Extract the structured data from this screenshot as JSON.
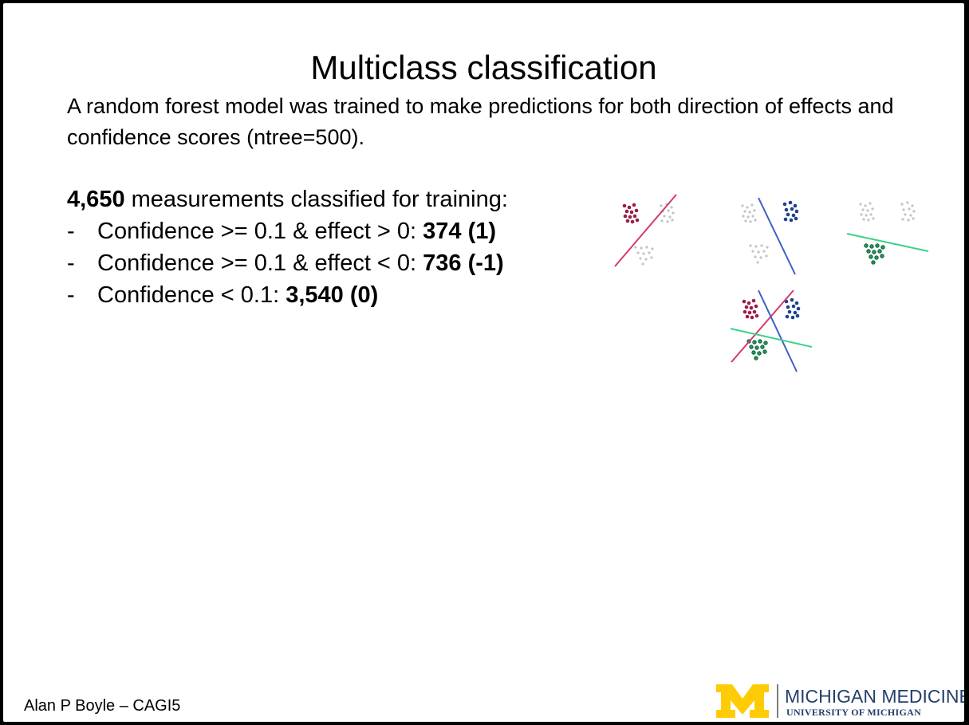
{
  "slide": {
    "title": "Multiclass classification",
    "intro": "A random forest model was trained to make predictions for both direction of effects and confidence scores (ntree=500).",
    "list": {
      "heading_bold": "4,650",
      "heading_rest": " measurements classified for training:",
      "items": [
        {
          "dash": "-",
          "text": "Confidence >= 0.1 & effect > 0: ",
          "bold": "374 (1)"
        },
        {
          "dash": "-",
          "text": "Confidence >= 0.1 & effect < 0: ",
          "bold": "736 (-1)"
        },
        {
          "dash": "-",
          "text": "Confidence < 0.1: ",
          "bold": "3,540 (0)"
        }
      ]
    },
    "footer": {
      "author": "Alan P Boyle – CAGI5",
      "logo": {
        "mark": "M",
        "name": "MICHIGAN MEDICINE",
        "sub": "UNIVERSITY OF MICHIGAN"
      }
    },
    "colors": {
      "maroon": "#9b1c47",
      "blue": "#1f3f8f",
      "green": "#1f9a5c",
      "grey": "#c4c4c4",
      "pink_line": "#d33a6f",
      "blue_line": "#3e5fc4",
      "green_line": "#3fd08a",
      "maize": "#ffcb05",
      "navy": "#24406b"
    }
  }
}
